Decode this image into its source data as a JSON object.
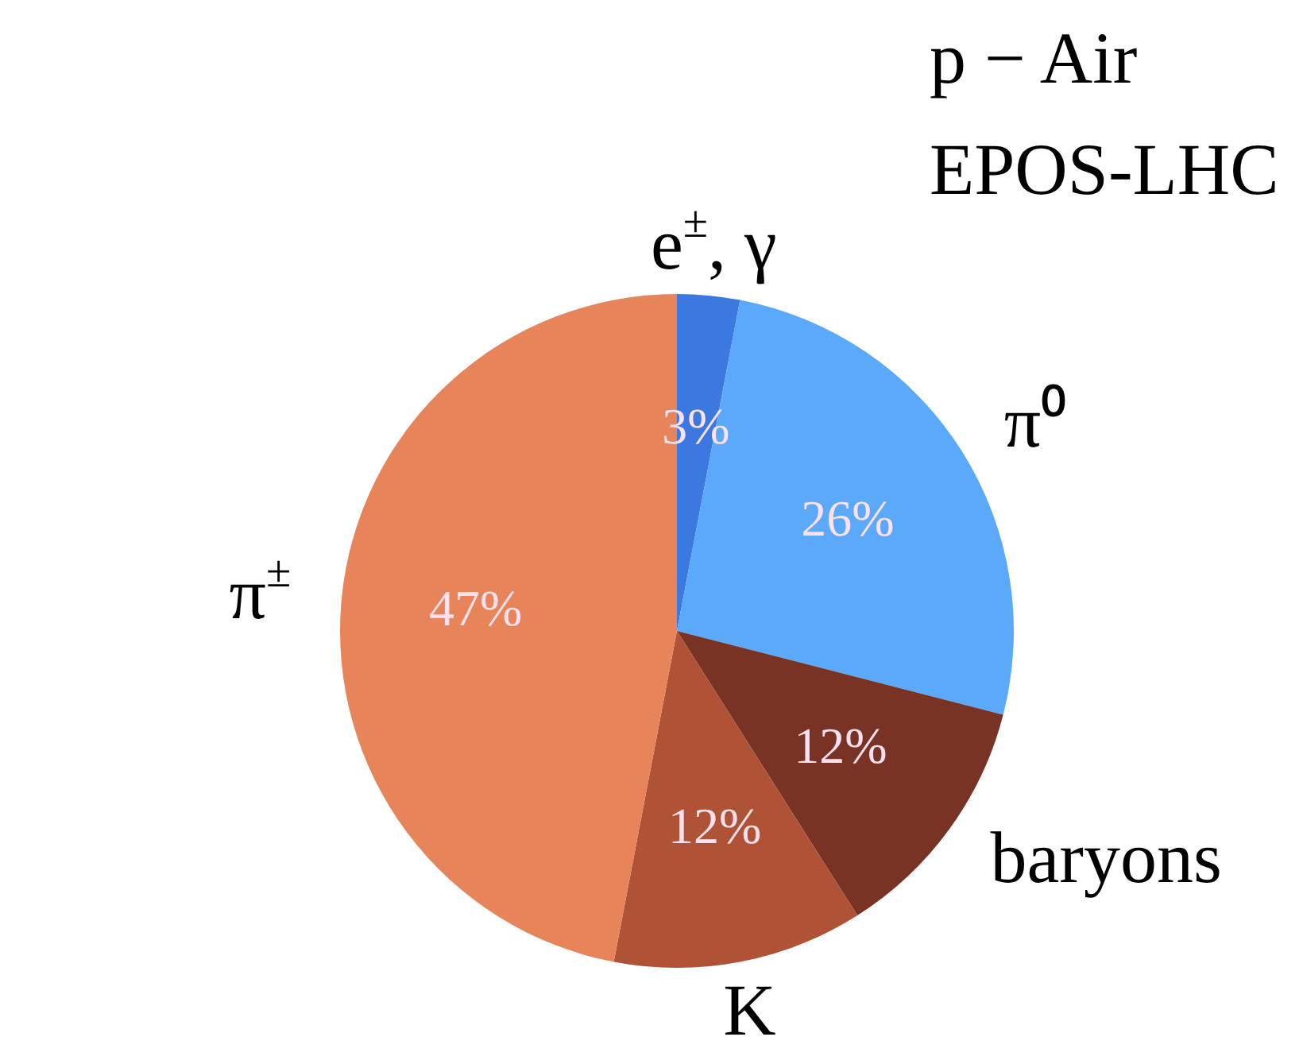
{
  "chart_data": {
    "type": "pie",
    "categories": [
      "e$^{±}$, γ",
      "π⁰",
      "baryons",
      "K",
      "π$^{±}$"
    ],
    "values": [
      3,
      26,
      12,
      12,
      47
    ],
    "colors": [
      "#3b78e0",
      "#5aa9fb",
      "#783324",
      "#b05236",
      "#e8845a"
    ],
    "value_labels": [
      "3%",
      "26%",
      "12%",
      "12%",
      "47%"
    ],
    "annotations": [
      "p − Air",
      "EPOS-LHC"
    ],
    "legend": false
  }
}
